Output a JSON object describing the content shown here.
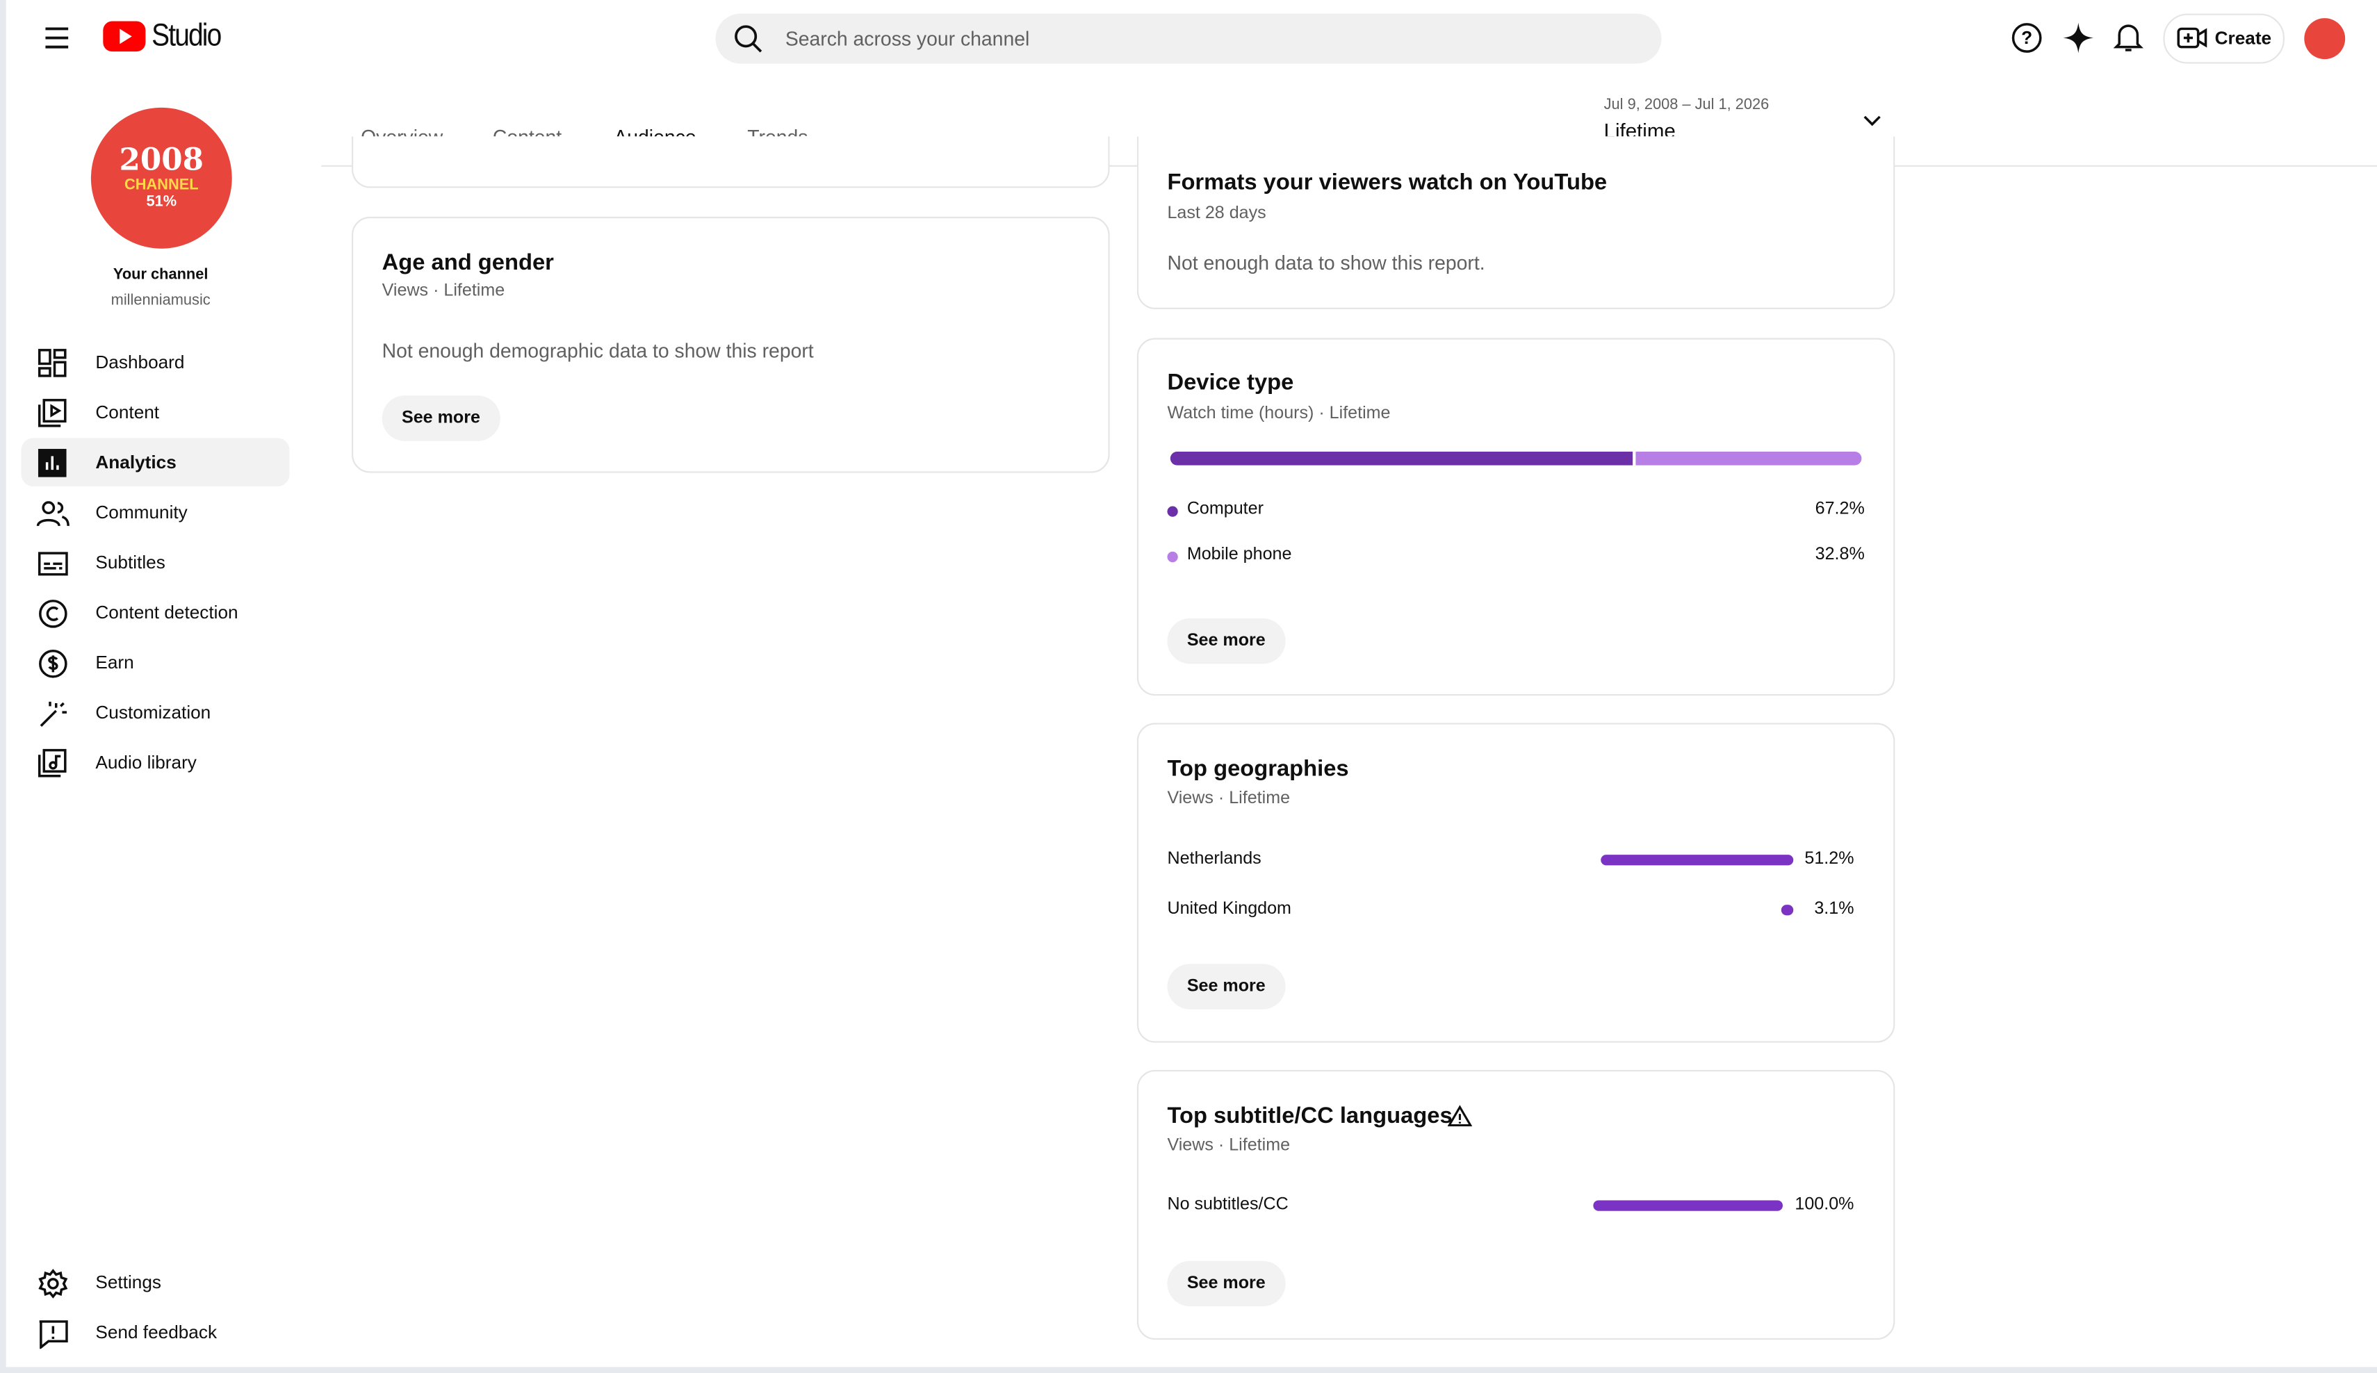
{
  "header": {
    "product": "Studio",
    "search_placeholder": "Search across your channel",
    "create": "Create"
  },
  "channel": {
    "avatar_lines": [
      "2008",
      "CHANNEL",
      "51%"
    ],
    "label": "Your channel",
    "handle": "millenniamusic"
  },
  "nav": [
    "Dashboard",
    "Content",
    "Analytics",
    "Community",
    "Subtitles",
    "Content detection",
    "Earn",
    "Customization",
    "Audio library"
  ],
  "nav_bottom": [
    "Settings",
    "Send feedback"
  ],
  "tabs": [
    "Overview",
    "Content",
    "Audience",
    "Trends"
  ],
  "date_range": {
    "dates": "Jul 9, 2008 – Jul 1, 2026",
    "period": "Lifetime"
  },
  "cards": {
    "age_gender": {
      "title": "Age and gender",
      "subtitle": "Views · Lifetime",
      "message": "Not enough demographic data to show this report",
      "button": "See more"
    },
    "formats": {
      "title": "Formats your viewers watch on YouTube",
      "subtitle": "Last 28 days",
      "message": "Not enough data to show this report."
    },
    "device": {
      "title": "Device type",
      "subtitle": "Watch time (hours) · Lifetime",
      "items": [
        {
          "label": "Computer",
          "value": 67.2,
          "value_label": "67.2%",
          "color": "#6b2fa8"
        },
        {
          "label": "Mobile phone",
          "value": 32.8,
          "value_label": "32.8%",
          "color": "#b77ee6"
        }
      ],
      "button": "See more"
    },
    "geo": {
      "title": "Top geographies",
      "subtitle": "Views · Lifetime",
      "items": [
        {
          "label": "Netherlands",
          "value": 51.2,
          "value_label": "51.2%"
        },
        {
          "label": "United Kingdom",
          "value": 3.1,
          "value_label": "3.1%"
        }
      ],
      "button": "See more"
    },
    "subtitles": {
      "title": "Top subtitle/CC languages",
      "subtitle": "Views · Lifetime",
      "items": [
        {
          "label": "No subtitles/CC",
          "value": 100.0,
          "value_label": "100.0%"
        }
      ],
      "button": "See more"
    }
  }
}
